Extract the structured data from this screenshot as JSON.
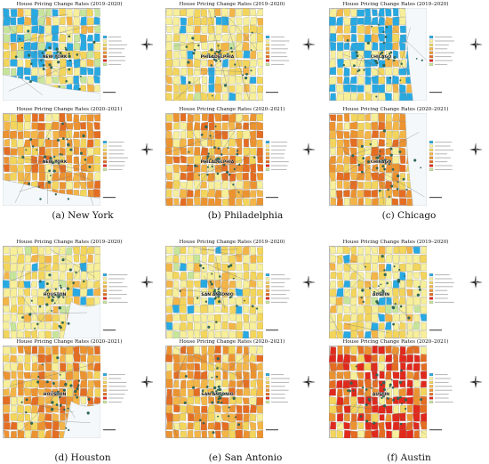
{
  "figure": {
    "title_top": "House Pricing Change Rates (2019–2020)",
    "title_bottom": "House Pricing Change Rates (2020–2021)",
    "panels": [
      {
        "id": "a",
        "letter": "(a)",
        "city": "New York",
        "city_label": "NEW YORK",
        "palette_top": "mixed",
        "palette_bottom": "orange"
      },
      {
        "id": "b",
        "letter": "(b)",
        "city": "Philadelphia",
        "city_label": "PHILADELPHIA",
        "palette_top": "yellow",
        "palette_bottom": "orange"
      },
      {
        "id": "c",
        "letter": "(c)",
        "city": "Chicago",
        "city_label": "CHICAGO",
        "palette_top": "blue",
        "palette_bottom": "orange"
      },
      {
        "id": "d",
        "letter": "(d)",
        "city": "Houston",
        "city_label": "HOUSTON",
        "palette_top": "yellow",
        "palette_bottom": "orange"
      },
      {
        "id": "e",
        "letter": "(e)",
        "city": "San Antonio",
        "city_label": "SAN ANTONIO",
        "palette_top": "yellow",
        "palette_bottom": "orange"
      },
      {
        "id": "f",
        "letter": "(f)",
        "city": "Austin",
        "city_label": "AUSTIN",
        "palette_top": "yellow",
        "palette_bottom": "red"
      }
    ],
    "colors": {
      "blue": "#27a9e1",
      "light_yellow": "#f7ef9a",
      "yellow": "#f3d55b",
      "light_orange": "#f4b547",
      "orange": "#ec9330",
      "dark_orange": "#e46d22",
      "red": "#e0291c",
      "green": "#c7e59a",
      "water": "#cfe8f4"
    }
  }
}
